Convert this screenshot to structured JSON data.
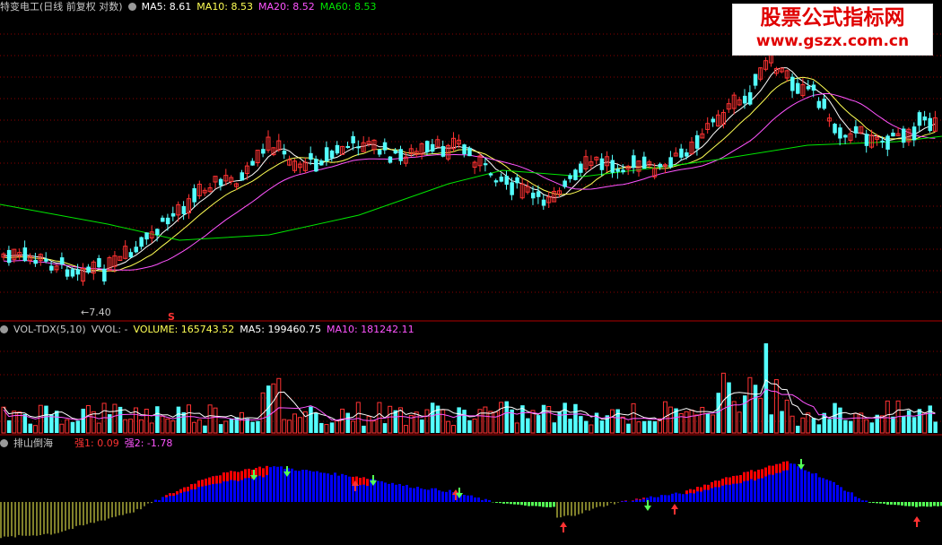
{
  "main_header": {
    "title": "特变电工(日线 前复权 对数)",
    "ma5": "MA5: 8.61",
    "ma10": "MA10: 8.53",
    "ma20": "MA20: 8.52",
    "ma60": "MA60: 8.53"
  },
  "low_marker": "←7.40",
  "s_marker": "S",
  "volume_header": {
    "name": "VOL-TDX(5,10)",
    "vvol": "VVOL: -",
    "volume": "VOLUME: 165743.52",
    "ma5": "MA5: 199460.75",
    "ma10": "MA10: 181242.11"
  },
  "indicator_header": {
    "name": "排山倒海",
    "strong1": "强1: 0.09",
    "strong2": "强2: -1.78"
  },
  "watermark": {
    "title": "股票公式指标网",
    "url": "www.gszx.com.cn"
  },
  "colors": {
    "background": "#000000",
    "up": "#ff3232",
    "down": "#54ffff",
    "ma5": "#ffffff",
    "ma10": "#ffff54",
    "ma20": "#ff54ff",
    "ma60": "#00e600",
    "grid": "#8b0000",
    "ind_yellow": "#ffff54",
    "ind_red": "#ff0000",
    "ind_blue": "#0000ff",
    "ind_green": "#54ff54"
  }
}
